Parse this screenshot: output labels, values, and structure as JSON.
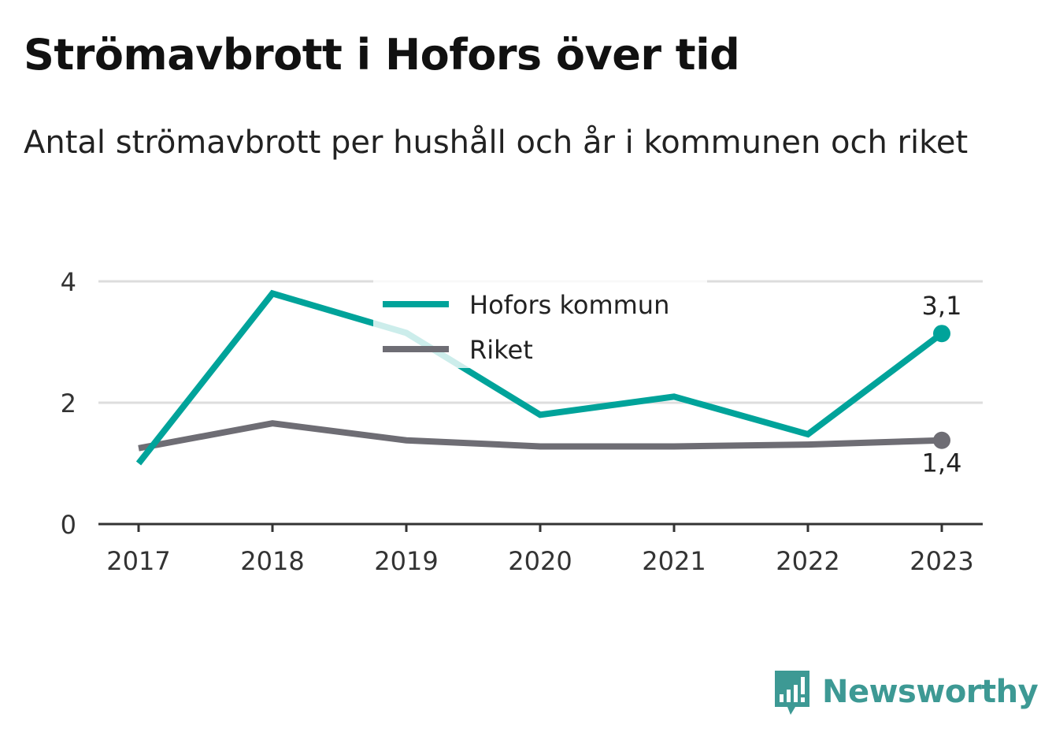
{
  "title": "Strömavbrott i Hofors över tid",
  "subtitle": "Antal strömavbrott per hushåll och år i kommunen och riket",
  "brand": {
    "name": "Newsworthy",
    "icon": "bar-chart-speech-bubble-icon",
    "color": "#3d9994"
  },
  "chart_data": {
    "type": "line",
    "title": "Strömavbrott i Hofors över tid",
    "subtitle": "Antal strömavbrott per hushåll och år i kommunen och riket",
    "x": [
      "2017",
      "2018",
      "2019",
      "2020",
      "2021",
      "2022",
      "2023"
    ],
    "ylim": [
      0,
      4
    ],
    "yticks": [
      "0",
      "2",
      "4"
    ],
    "grid": true,
    "legend_position": "top-center",
    "series": [
      {
        "name": "Hofors kommun",
        "color": "#00a39a",
        "values": [
          1.0,
          3.8,
          3.15,
          1.8,
          2.1,
          1.48,
          3.14
        ],
        "end_label": "3,1"
      },
      {
        "name": "Riket",
        "color": "#6e6d74",
        "values": [
          1.25,
          1.66,
          1.38,
          1.28,
          1.28,
          1.31,
          1.38
        ],
        "end_label": "1,4"
      }
    ]
  }
}
